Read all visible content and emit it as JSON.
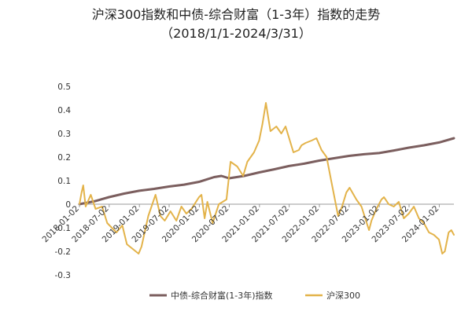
{
  "chart_data": {
    "type": "line",
    "title": "沪深300指数和中债-综合财富（1-3年）指数的走势",
    "subtitle": "（2018/1/1-2024/3/31）",
    "xlabel": "",
    "ylabel": "",
    "ylim": [
      -0.3,
      0.5
    ],
    "yticks": [
      "0.5",
      "0.4",
      "0.3",
      "0.2",
      "0.1",
      "0",
      "-0.1",
      "-0.2",
      "-0.3"
    ],
    "xticks": [
      "2018-01-02",
      "2018-07-02",
      "2019-01-02",
      "2019-07-02",
      "2020-01-02",
      "2020-07-02",
      "2021-01-02",
      "2021-07-02",
      "2022-01-02",
      "2022-07-02",
      "2023-01-02",
      "2023-07-02",
      "2024-01-02"
    ],
    "x_range": [
      "2018-01-02",
      "2024-03-31"
    ],
    "legend_position": "bottom",
    "grid": false,
    "series": [
      {
        "name": "中债-综合财富(1-3年)指数",
        "color": "#7b5e5e",
        "points": [
          [
            "2018-01-02",
            0.0
          ],
          [
            "2018-04-01",
            0.012
          ],
          [
            "2018-07-01",
            0.03
          ],
          [
            "2018-10-01",
            0.045
          ],
          [
            "2019-01-01",
            0.057
          ],
          [
            "2019-04-01",
            0.065
          ],
          [
            "2019-07-01",
            0.075
          ],
          [
            "2019-10-01",
            0.083
          ],
          [
            "2020-01-01",
            0.095
          ],
          [
            "2020-04-01",
            0.115
          ],
          [
            "2020-05-15",
            0.12
          ],
          [
            "2020-07-01",
            0.11
          ],
          [
            "2020-10-01",
            0.12
          ],
          [
            "2021-01-01",
            0.135
          ],
          [
            "2021-04-01",
            0.148
          ],
          [
            "2021-07-01",
            0.162
          ],
          [
            "2021-10-01",
            0.172
          ],
          [
            "2022-01-01",
            0.185
          ],
          [
            "2022-04-01",
            0.195
          ],
          [
            "2022-07-01",
            0.205
          ],
          [
            "2022-10-01",
            0.212
          ],
          [
            "2023-01-01",
            0.217
          ],
          [
            "2023-04-01",
            0.228
          ],
          [
            "2023-07-01",
            0.24
          ],
          [
            "2023-10-01",
            0.25
          ],
          [
            "2024-01-01",
            0.262
          ],
          [
            "2024-03-31",
            0.28
          ]
        ]
      },
      {
        "name": "沪深300",
        "color": "#e3b34a",
        "points": [
          [
            "2018-01-02",
            0.0
          ],
          [
            "2018-01-15",
            0.05
          ],
          [
            "2018-01-25",
            0.08
          ],
          [
            "2018-02-09",
            -0.01
          ],
          [
            "2018-03-12",
            0.04
          ],
          [
            "2018-04-10",
            -0.02
          ],
          [
            "2018-05-20",
            -0.01
          ],
          [
            "2018-06-20",
            -0.08
          ],
          [
            "2018-08-15",
            -0.12
          ],
          [
            "2018-09-20",
            -0.09
          ],
          [
            "2018-10-18",
            -0.17
          ],
          [
            "2018-12-28",
            -0.21
          ],
          [
            "2019-01-15",
            -0.18
          ],
          [
            "2019-02-25",
            -0.05
          ],
          [
            "2019-04-10",
            0.04
          ],
          [
            "2019-05-10",
            -0.05
          ],
          [
            "2019-06-05",
            -0.07
          ],
          [
            "2019-07-10",
            -0.03
          ],
          [
            "2019-08-15",
            -0.07
          ],
          [
            "2019-09-15",
            -0.01
          ],
          [
            "2019-10-15",
            -0.04
          ],
          [
            "2019-11-15",
            -0.02
          ],
          [
            "2019-12-31",
            0.03
          ],
          [
            "2020-01-15",
            0.04
          ],
          [
            "2020-02-03",
            -0.06
          ],
          [
            "2020-02-20",
            0.01
          ],
          [
            "2020-03-23",
            -0.08
          ],
          [
            "2020-04-30",
            0.0
          ],
          [
            "2020-06-15",
            0.02
          ],
          [
            "2020-07-10",
            0.18
          ],
          [
            "2020-08-20",
            0.16
          ],
          [
            "2020-09-25",
            0.12
          ],
          [
            "2020-10-20",
            0.18
          ],
          [
            "2020-11-30",
            0.22
          ],
          [
            "2020-12-31",
            0.27
          ],
          [
            "2021-01-20",
            0.34
          ],
          [
            "2021-02-10",
            0.43
          ],
          [
            "2021-03-10",
            0.31
          ],
          [
            "2021-04-15",
            0.33
          ],
          [
            "2021-05-15",
            0.3
          ],
          [
            "2021-06-10",
            0.33
          ],
          [
            "2021-07-28",
            0.22
          ],
          [
            "2021-08-30",
            0.23
          ],
          [
            "2021-09-15",
            0.25
          ],
          [
            "2021-10-10",
            0.26
          ],
          [
            "2021-11-15",
            0.27
          ],
          [
            "2021-12-15",
            0.28
          ],
          [
            "2022-01-15",
            0.23
          ],
          [
            "2022-02-15",
            0.2
          ],
          [
            "2022-03-15",
            0.1
          ],
          [
            "2022-04-26",
            -0.05
          ],
          [
            "2022-05-20",
            -0.01
          ],
          [
            "2022-06-15",
            0.05
          ],
          [
            "2022-07-05",
            0.07
          ],
          [
            "2022-08-15",
            0.02
          ],
          [
            "2022-09-15",
            -0.01
          ],
          [
            "2022-10-31",
            -0.11
          ],
          [
            "2022-11-15",
            -0.07
          ],
          [
            "2022-12-15",
            -0.02
          ],
          [
            "2023-01-15",
            0.02
          ],
          [
            "2023-01-30",
            0.03
          ],
          [
            "2023-02-28",
            0.0
          ],
          [
            "2023-03-31",
            -0.01
          ],
          [
            "2023-04-30",
            0.01
          ],
          [
            "2023-05-31",
            -0.06
          ],
          [
            "2023-06-30",
            -0.04
          ],
          [
            "2023-07-31",
            -0.01
          ],
          [
            "2023-08-31",
            -0.06
          ],
          [
            "2023-09-30",
            -0.08
          ],
          [
            "2023-10-31",
            -0.12
          ],
          [
            "2023-11-30",
            -0.13
          ],
          [
            "2023-12-31",
            -0.15
          ],
          [
            "2024-01-20",
            -0.21
          ],
          [
            "2024-02-05",
            -0.2
          ],
          [
            "2024-02-28",
            -0.12
          ],
          [
            "2024-03-15",
            -0.11
          ],
          [
            "2024-03-31",
            -0.13
          ]
        ]
      }
    ]
  }
}
